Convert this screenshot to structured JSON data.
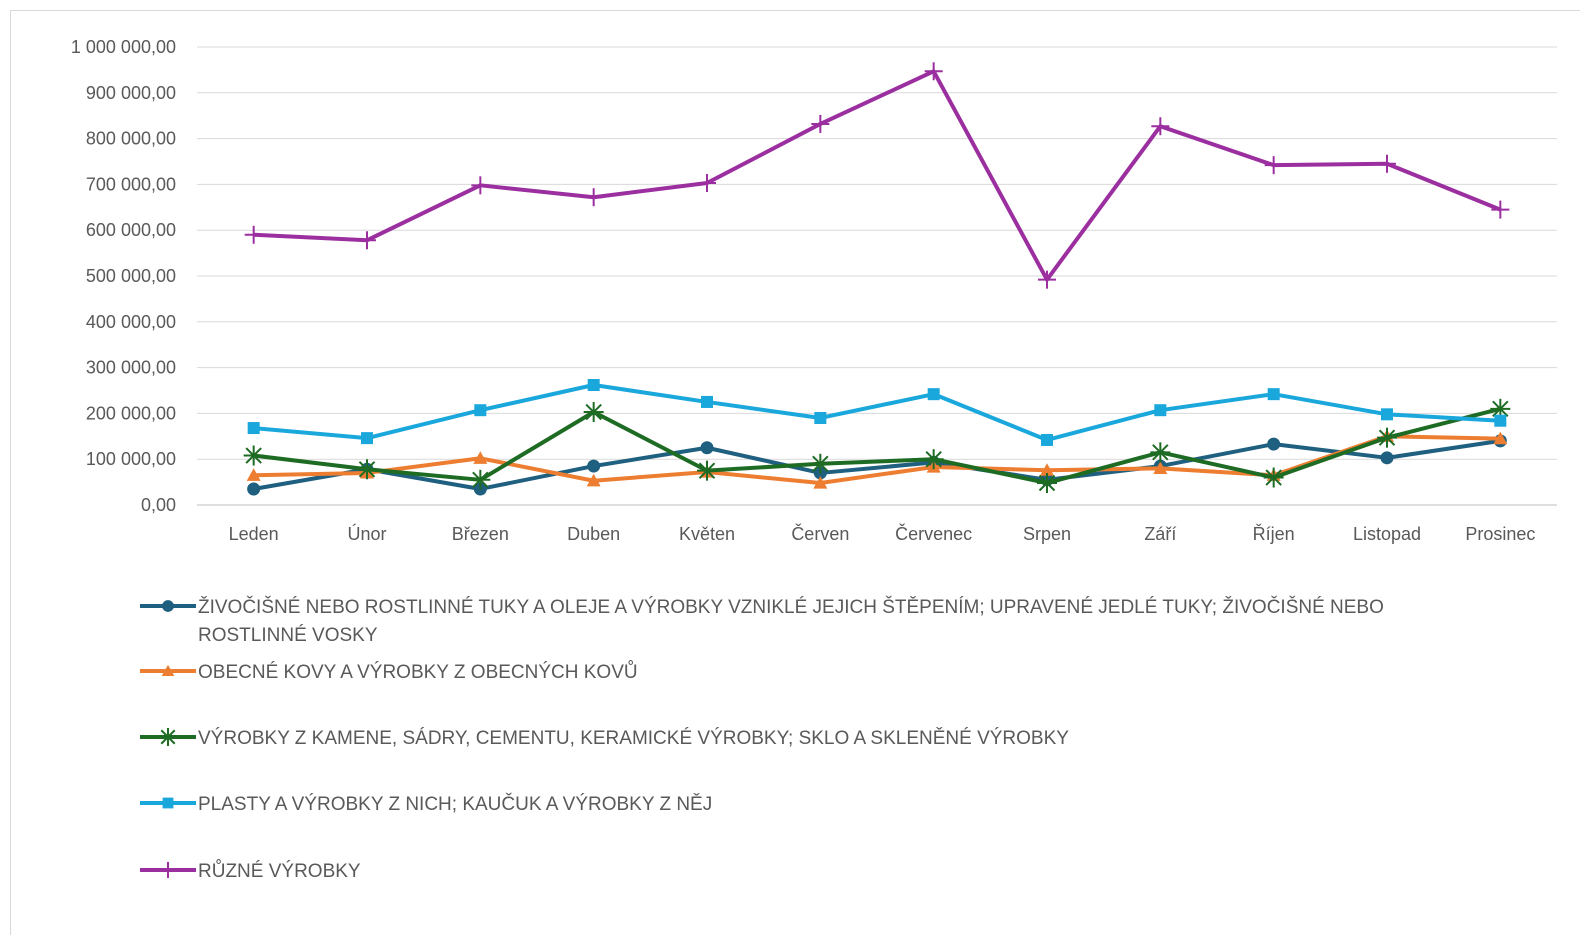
{
  "chart_data": {
    "type": "line",
    "title": "",
    "xlabel": "",
    "ylabel": "",
    "categories": [
      "Leden",
      "Únor",
      "Březen",
      "Duben",
      "Květen",
      "Červen",
      "Červenec",
      "Srpen",
      "Září",
      "Říjen",
      "Listopad",
      "Prosinec"
    ],
    "ylim": [
      0,
      1000000
    ],
    "yticks": [
      0,
      100000,
      200000,
      300000,
      400000,
      500000,
      600000,
      700000,
      800000,
      900000,
      1000000
    ],
    "ytick_labels": [
      "0,00",
      "100 000,00",
      "200 000,00",
      "300 000,00",
      "400 000,00",
      "500 000,00",
      "600 000,00",
      "700 000,00",
      "800 000,00",
      "900 000,00",
      "1 000 000,00"
    ],
    "grid": true,
    "legend_position": "bottom",
    "series": [
      {
        "name": "ŽIVOČIŠNÉ NEBO ROSTLINNÉ TUKY A OLEJE A VÝROBKY VZNIKLÉ JEJICH ŠTĚPENÍM; UPRAVENÉ JEDLÉ TUKY; ŽIVOČIŠNÉ NEBO ROSTLINNÉ VOSKY",
        "legend_lines": [
          "ŽIVOČIŠNÉ NEBO ROSTLINNÉ TUKY A OLEJE A VÝROBKY VZNIKLÉ JEJICH ŠTĚPENÍM; UPRAVENÉ JEDLÉ TUKY; ŽIVOČIŠNÉ NEBO",
          "ROSTLINNÉ VOSKY"
        ],
        "color": "#1f5f7f",
        "marker": "circle",
        "values": [
          35000,
          78000,
          35000,
          85000,
          125000,
          70000,
          93000,
          55000,
          85000,
          133000,
          103000,
          140000
        ]
      },
      {
        "name": "OBECNÉ KOVY A VÝROBKY Z OBECNÝCH KOVŮ",
        "legend_lines": [
          "OBECNÉ KOVY A VÝROBKY Z OBECNÝCH KOVŮ"
        ],
        "color": "#ed7d31",
        "marker": "triangle",
        "values": [
          65000,
          70000,
          102000,
          53000,
          72000,
          48000,
          83000,
          76000,
          80000,
          65000,
          150000,
          145000
        ]
      },
      {
        "name": "VÝROBKY Z KAMENE, SÁDRY, CEMENTU, KERAMICKÉ VÝROBKY; SKLO A SKLENĚNÉ VÝROBKY",
        "legend_lines": [
          "VÝROBKY Z KAMENE, SÁDRY, CEMENTU, KERAMICKÉ VÝROBKY; SKLO A SKLENĚNÉ VÝROBKY"
        ],
        "color": "#1e6b24",
        "marker": "star",
        "values": [
          108000,
          78000,
          55000,
          203000,
          75000,
          90000,
          100000,
          48000,
          115000,
          60000,
          147000,
          210000
        ]
      },
      {
        "name": "PLASTY A VÝROBKY Z NICH; KAUČUK A VÝROBKY Z NĚJ",
        "legend_lines": [
          "PLASTY A VÝROBKY Z NICH; KAUČUK A VÝROBKY Z NĚJ"
        ],
        "color": "#1aa7dc",
        "marker": "square",
        "values": [
          168000,
          146000,
          207000,
          262000,
          225000,
          190000,
          242000,
          142000,
          207000,
          242000,
          198000,
          184000
        ]
      },
      {
        "name": "RŮZNÉ VÝROBKY",
        "legend_lines": [
          "RŮZNÉ VÝROBKY"
        ],
        "color": "#9b2fa0",
        "marker": "plus",
        "values": [
          590000,
          578000,
          698000,
          672000,
          703000,
          832000,
          947000,
          492000,
          827000,
          742000,
          745000,
          645000
        ]
      }
    ]
  }
}
